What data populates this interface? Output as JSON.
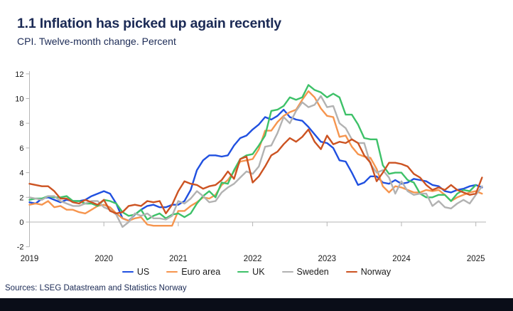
{
  "header": {
    "title": "1.1 Inflation has picked up again recently",
    "subtitle": "CPI. Twelve-month change. Percent"
  },
  "footer": {
    "sources": "Sources: LSEG Datastream and Statistics Norway"
  },
  "colors": {
    "navy_text": "#1b2a55",
    "axis": "#b5b5b5",
    "tick_label": "#1a1a1a",
    "footer_bar": "#0a0d18"
  },
  "chart_data": {
    "type": "line",
    "title": "1.1 Inflation has picked up again recently",
    "subtitle": "CPI. Twelve-month change. Percent",
    "frequency": "monthly",
    "x_start": "2019-01",
    "x_end": "2025-02",
    "x_tick_labels": [
      "2019",
      "2020",
      "2021",
      "2022",
      "2023",
      "2024",
      "2025"
    ],
    "y_ticks": [
      -2,
      0,
      2,
      4,
      6,
      8,
      10,
      12
    ],
    "ylim": [
      -2,
      12
    ],
    "zero_line": true,
    "grid": false,
    "legend_position": "bottom",
    "series": [
      {
        "name": "US",
        "color": "#2050e0",
        "values": [
          1.6,
          1.5,
          1.9,
          2.0,
          1.8,
          1.6,
          1.8,
          1.7,
          1.7,
          1.8,
          2.1,
          2.3,
          2.5,
          2.3,
          1.5,
          0.3,
          0.1,
          0.6,
          1.0,
          1.3,
          1.4,
          1.2,
          1.2,
          1.4,
          1.4,
          1.7,
          2.6,
          4.2,
          5.0,
          5.4,
          5.4,
          5.3,
          5.4,
          6.2,
          6.8,
          7.0,
          7.5,
          7.9,
          8.5,
          8.3,
          8.6,
          9.1,
          8.5,
          8.3,
          8.2,
          7.7,
          7.1,
          6.5,
          6.4,
          6.0,
          5.0,
          4.9,
          4.0,
          3.0,
          3.2,
          3.7,
          3.7,
          3.2,
          3.1,
          3.4,
          3.1,
          3.2,
          3.5,
          3.4,
          3.3,
          3.0,
          2.9,
          2.5,
          2.4,
          2.6,
          2.7,
          2.9,
          3.0,
          2.8
        ]
      },
      {
        "name": "Euro area",
        "color": "#f6954e",
        "values": [
          1.4,
          1.5,
          1.4,
          1.7,
          1.2,
          1.3,
          1.0,
          1.0,
          0.8,
          0.7,
          1.0,
          1.3,
          1.4,
          1.2,
          0.7,
          0.3,
          0.1,
          0.3,
          0.4,
          -0.2,
          -0.3,
          -0.3,
          -0.3,
          -0.3,
          0.9,
          0.9,
          1.3,
          1.6,
          2.0,
          1.9,
          2.2,
          3.0,
          3.4,
          4.1,
          4.9,
          5.0,
          5.1,
          5.9,
          7.4,
          7.4,
          8.1,
          8.6,
          8.9,
          9.1,
          9.9,
          10.6,
          10.1,
          9.2,
          8.6,
          8.5,
          6.9,
          7.0,
          6.1,
          5.5,
          5.3,
          5.2,
          4.3,
          2.9,
          2.4,
          2.9,
          2.8,
          2.6,
          2.4,
          2.4,
          2.6,
          2.5,
          2.6,
          2.2,
          1.7,
          2.0,
          2.2,
          2.4,
          2.5,
          2.3
        ]
      },
      {
        "name": "UK",
        "color": "#3dc168",
        "values": [
          1.8,
          1.9,
          1.9,
          2.1,
          2.0,
          2.0,
          2.1,
          1.7,
          1.7,
          1.5,
          1.5,
          1.3,
          1.8,
          1.7,
          1.5,
          0.8,
          0.5,
          0.6,
          1.0,
          0.2,
          0.5,
          0.7,
          0.3,
          0.6,
          0.7,
          0.4,
          0.7,
          1.5,
          2.1,
          2.5,
          2.0,
          3.2,
          3.1,
          4.2,
          5.1,
          5.4,
          5.5,
          6.2,
          7.0,
          9.0,
          9.1,
          9.4,
          10.1,
          9.9,
          10.1,
          11.1,
          10.7,
          10.5,
          10.1,
          10.4,
          10.1,
          8.7,
          8.7,
          7.9,
          6.8,
          6.7,
          6.7,
          4.6,
          3.9,
          4.0,
          4.0,
          3.4,
          3.2,
          2.3,
          2.0,
          2.0,
          2.2,
          2.2,
          1.7,
          2.3,
          2.6,
          2.5,
          3.0,
          null
        ]
      },
      {
        "name": "Sweden",
        "color": "#b2b2b2",
        "values": [
          2.0,
          1.9,
          1.8,
          2.1,
          2.1,
          1.7,
          1.5,
          1.3,
          1.3,
          1.5,
          1.7,
          1.7,
          1.2,
          1.0,
          0.6,
          -0.4,
          0.0,
          0.7,
          0.5,
          0.7,
          0.3,
          0.3,
          0.2,
          0.5,
          1.7,
          1.5,
          1.9,
          2.5,
          2.1,
          1.6,
          1.7,
          2.4,
          2.8,
          3.1,
          3.6,
          4.1,
          3.9,
          4.5,
          6.1,
          6.2,
          7.2,
          8.5,
          8.0,
          9.0,
          9.7,
          9.3,
          9.5,
          10.2,
          9.3,
          9.4,
          8.0,
          7.6,
          6.7,
          6.4,
          6.4,
          4.7,
          4.0,
          4.2,
          3.6,
          2.3,
          3.3,
          2.5,
          2.2,
          2.3,
          2.3,
          1.3,
          1.7,
          1.2,
          1.1,
          1.5,
          1.8,
          1.5,
          2.2,
          2.9
        ]
      },
      {
        "name": "Norway",
        "color": "#cc5322",
        "values": [
          3.1,
          3.0,
          2.9,
          2.9,
          2.5,
          1.9,
          1.9,
          1.6,
          1.5,
          1.8,
          1.6,
          1.4,
          1.8,
          0.9,
          0.7,
          0.8,
          1.3,
          1.4,
          1.3,
          1.7,
          1.6,
          1.7,
          0.7,
          1.4,
          2.5,
          3.3,
          3.1,
          3.0,
          2.7,
          2.9,
          3.0,
          3.4,
          4.1,
          3.5,
          5.1,
          5.3,
          3.2,
          3.7,
          4.5,
          5.4,
          5.7,
          6.3,
          6.8,
          6.5,
          6.9,
          7.5,
          6.5,
          5.9,
          7.0,
          6.3,
          6.5,
          6.4,
          6.7,
          6.4,
          5.4,
          4.8,
          3.3,
          4.0,
          4.8,
          4.8,
          4.7,
          4.5,
          3.9,
          3.6,
          3.0,
          2.6,
          2.8,
          2.6,
          3.0,
          2.6,
          2.4,
          2.2,
          2.3,
          3.6
        ]
      }
    ]
  }
}
